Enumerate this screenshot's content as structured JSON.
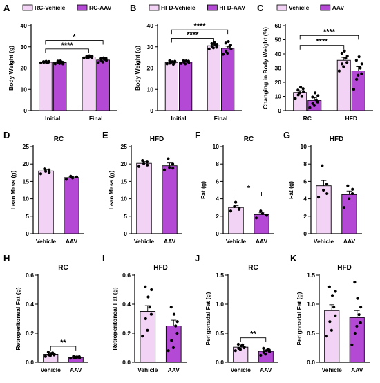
{
  "colors": {
    "vehicle": "#f2d2f5",
    "aav": "#b449d6"
  },
  "chart_data": [
    {
      "panel": "A",
      "type": "bar",
      "title": "",
      "categories": [
        "Initial",
        "Final"
      ],
      "ylabel": "Body Weight (g)",
      "ylim": [
        0,
        40
      ],
      "yticks": [
        0,
        10,
        20,
        30,
        40
      ],
      "legend": {
        "position": "top",
        "entries": [
          "RC-Vehicle",
          "RC-AAV"
        ]
      },
      "series": [
        {
          "name": "RC-Vehicle",
          "values": [
            22.8,
            25.2
          ],
          "errors": [
            0.3,
            0.3
          ]
        },
        {
          "name": "RC-AAV",
          "values": [
            22.6,
            23.8
          ],
          "errors": [
            0.4,
            0.5
          ]
        }
      ],
      "points": [
        [
          [
            22.5,
            23.0,
            22.7,
            23.2,
            22.9,
            22.6,
            23.1,
            22.8
          ],
          [
            22.0,
            23.3,
            22.5,
            23.4,
            22.2,
            22.9,
            22.7,
            22.0
          ]
        ],
        [
          [
            24.8,
            25.5,
            25.0,
            25.8,
            24.9,
            25.3,
            25.6,
            25.0
          ],
          [
            22.6,
            24.5,
            23.4,
            24.8,
            22.9,
            24.1,
            23.6,
            24.6
          ]
        ]
      ],
      "annotations": [
        {
          "text": "****",
          "from": "Initial.RC-Vehicle",
          "to": "Final.RC-Vehicle",
          "y": 29
        },
        {
          "text": "*",
          "from": "Initial.RC-Vehicle",
          "to": "Final.RC-AAV",
          "y": 33
        }
      ]
    },
    {
      "panel": "B",
      "type": "bar",
      "title": "",
      "categories": [
        "Initial",
        "Final"
      ],
      "ylabel": "Body Weight (g)",
      "ylim": [
        0,
        40
      ],
      "yticks": [
        0,
        10,
        20,
        30,
        40
      ],
      "legend": {
        "position": "top",
        "entries": [
          "HFD-Vehicle",
          "HFD-AAV"
        ]
      },
      "series": [
        {
          "name": "HFD-Vehicle",
          "values": [
            22.7,
            30.5
          ],
          "errors": [
            0.4,
            0.7
          ]
        },
        {
          "name": "HFD-AAV",
          "values": [
            22.9,
            29.3
          ],
          "errors": [
            0.4,
            1.0
          ]
        }
      ],
      "points": [
        [
          [
            22.0,
            23.5,
            22.3,
            23.0,
            22.8,
            21.8,
            23.2,
            22.6
          ],
          [
            22.2,
            23.6,
            22.8,
            23.4,
            22.0,
            23.1,
            22.6,
            23.3
          ]
        ],
        [
          [
            29.0,
            31.5,
            30.2,
            32.0,
            29.5,
            30.8,
            31.2,
            29.8
          ],
          [
            26.5,
            31.8,
            28.0,
            32.5,
            27.0,
            30.2,
            29.0,
            30.8
          ]
        ]
      ],
      "annotations": [
        {
          "text": "****",
          "from": "Initial.HFD-Vehicle",
          "to": "Final.HFD-Vehicle",
          "y": 34
        },
        {
          "text": "****",
          "from": "Initial.HFD-Vehicle",
          "to": "Final.HFD-AAV",
          "y": 38
        }
      ]
    },
    {
      "panel": "C",
      "type": "bar",
      "title": "",
      "categories": [
        "RC",
        "HFD"
      ],
      "ylabel": "Changing in Body Weight (%)",
      "ylim": [
        0,
        60
      ],
      "yticks": [
        0,
        10,
        20,
        30,
        40,
        50,
        60
      ],
      "legend": {
        "position": "top",
        "entries": [
          "Vehicle",
          "AAV"
        ]
      },
      "series": [
        {
          "name": "Vehicle",
          "values": [
            12.8,
            35.5
          ],
          "errors": [
            1.3,
            2.0
          ]
        },
        {
          "name": "AAV",
          "values": [
            7.2,
            28.0
          ],
          "errors": [
            1.9,
            3.0
          ]
        }
      ],
      "points": [
        [
          [
            8.5,
            14.5,
            11.0,
            16.5,
            12.5,
            10.0,
            13.5,
            15.5
          ],
          [
            2.0,
            9.5,
            5.0,
            12.5,
            3.5,
            7.5,
            10.5,
            6.0
          ]
        ],
        [
          [
            28.0,
            40.5,
            33.0,
            42.0,
            31.0,
            37.0,
            38.5,
            34.0
          ],
          [
            15.0,
            35.5,
            22.0,
            38.0,
            25.0,
            30.0,
            33.0,
            26.0
          ]
        ]
      ],
      "annotations": [
        {
          "text": "****",
          "from": "RC.Vehicle",
          "to": "HFD.Vehicle",
          "y": 46
        },
        {
          "text": "****",
          "from": "RC.Vehicle",
          "to": "HFD.AAV",
          "y": 53
        }
      ]
    },
    {
      "panel": "D",
      "type": "bar",
      "title": "RC",
      "categories": [
        "Vehicle",
        "AAV"
      ],
      "ylabel": "Lean Mass (g)",
      "ylim": [
        0,
        25
      ],
      "yticks": [
        0,
        5,
        10,
        15,
        20,
        25
      ],
      "series": [
        {
          "name": "",
          "values": [
            18.0,
            16.1
          ],
          "errors": [
            0.4,
            0.3
          ]
        }
      ],
      "points": [
        [
          17.2,
          18.6,
          17.9,
          18.3,
          17.6
        ],
        [
          15.6,
          16.5,
          16.0,
          16.3
        ]
      ],
      "annotations": []
    },
    {
      "panel": "E",
      "type": "bar",
      "title": "HFD",
      "categories": [
        "Vehicle",
        "AAV"
      ],
      "ylabel": "Lean Mass (g)",
      "ylim": [
        0,
        25
      ],
      "yticks": [
        0,
        5,
        10,
        15,
        20,
        25
      ],
      "series": [
        {
          "name": "",
          "values": [
            20.2,
            19.5
          ],
          "errors": [
            0.5,
            0.8
          ]
        }
      ],
      "points": [
        [
          19.3,
          21.0,
          20.1,
          20.6,
          19.7
        ],
        [
          18.3,
          21.5,
          19.0,
          20.0,
          18.8
        ]
      ],
      "annotations": []
    },
    {
      "panel": "F",
      "type": "bar",
      "title": "RC",
      "categories": [
        "Vehicle",
        "AAV"
      ],
      "ylabel": "Fat (g)",
      "ylim": [
        0,
        10
      ],
      "yticks": [
        0,
        2,
        4,
        6,
        8,
        10
      ],
      "series": [
        {
          "name": "",
          "values": [
            3.0,
            2.2
          ],
          "errors": [
            0.2,
            0.2
          ]
        }
      ],
      "points": [
        [
          2.6,
          3.1,
          3.6,
          2.8,
          2.9
        ],
        [
          1.8,
          2.6,
          2.3,
          2.1
        ]
      ],
      "annotations": [
        {
          "text": "*",
          "from": "Vehicle",
          "to": "AAV",
          "y": 4.8
        }
      ]
    },
    {
      "panel": "G",
      "type": "bar",
      "title": "HFD",
      "categories": [
        "Vehicle",
        "AAV"
      ],
      "ylabel": "Fat (g)",
      "ylim": [
        0,
        10
      ],
      "yticks": [
        0,
        2,
        4,
        6,
        8,
        10
      ],
      "series": [
        {
          "name": "",
          "values": [
            5.5,
            4.5
          ],
          "errors": [
            0.6,
            0.4
          ]
        }
      ],
      "points": [
        [
          4.2,
          7.8,
          5.0,
          5.7,
          4.6
        ],
        [
          3.0,
          5.5,
          4.0,
          4.6,
          5.1
        ]
      ],
      "annotations": []
    },
    {
      "panel": "H",
      "type": "bar",
      "title": "RC",
      "categories": [
        "Vehicle",
        "AAV"
      ],
      "ylabel": "Retroperitoneal Fat (g)",
      "ylim": [
        0,
        0.6
      ],
      "yticks": [
        0.0,
        0.2,
        0.4,
        0.6
      ],
      "series": [
        {
          "name": "",
          "values": [
            0.055,
            0.033
          ],
          "errors": [
            0.006,
            0.003
          ]
        }
      ],
      "points": [
        [
          0.04,
          0.07,
          0.05,
          0.06,
          0.045,
          0.065,
          0.055,
          0.05
        ],
        [
          0.028,
          0.04,
          0.033,
          0.036,
          0.03,
          0.035,
          0.03,
          0.038
        ]
      ],
      "annotations": [
        {
          "text": "**",
          "from": "Vehicle",
          "to": "AAV",
          "y": 0.11
        }
      ]
    },
    {
      "panel": "I",
      "type": "bar",
      "title": "HFD",
      "categories": [
        "Vehicle",
        "AAV"
      ],
      "ylabel": "Retroperitoneal Fat (g)",
      "ylim": [
        0,
        0.6
      ],
      "yticks": [
        0.0,
        0.2,
        0.4,
        0.6
      ],
      "series": [
        {
          "name": "",
          "values": [
            0.35,
            0.25
          ],
          "errors": [
            0.04,
            0.04
          ]
        }
      ],
      "points": [
        [
          0.18,
          0.52,
          0.3,
          0.45,
          0.22,
          0.38,
          0.5,
          0.33
        ],
        [
          0.08,
          0.38,
          0.15,
          0.33,
          0.1,
          0.25,
          0.28,
          0.2
        ]
      ],
      "annotations": []
    },
    {
      "panel": "J",
      "type": "bar",
      "title": "RC",
      "categories": [
        "Vehicle",
        "AAV"
      ],
      "ylabel": "Perigonadal Fat (g)",
      "ylim": [
        0,
        1.5
      ],
      "yticks": [
        0.0,
        0.5,
        1.0,
        1.5
      ],
      "series": [
        {
          "name": "",
          "values": [
            0.26,
            0.19
          ],
          "errors": [
            0.02,
            0.02
          ]
        }
      ],
      "points": [
        [
          0.2,
          0.31,
          0.24,
          0.28,
          0.22,
          0.3,
          0.26,
          0.25
        ],
        [
          0.12,
          0.24,
          0.17,
          0.2,
          0.14,
          0.22,
          0.18,
          0.21
        ]
      ],
      "annotations": [
        {
          "text": "**",
          "from": "Vehicle",
          "to": "AAV",
          "y": 0.42
        }
      ]
    },
    {
      "panel": "K",
      "type": "bar",
      "title": "HFD",
      "categories": [
        "Vehicle",
        "AAV"
      ],
      "ylabel": "Perigonadal Fat (g)",
      "ylim": [
        0,
        1.5
      ],
      "yticks": [
        0.0,
        0.5,
        1.0,
        1.5
      ],
      "series": [
        {
          "name": "",
          "values": [
            0.89,
            0.77
          ],
          "errors": [
            0.1,
            0.12
          ]
        }
      ],
      "points": [
        [
          0.45,
          1.3,
          0.7,
          1.15,
          0.55,
          0.95,
          1.22,
          0.8
        ],
        [
          0.3,
          1.38,
          0.5,
          1.1,
          0.62,
          0.82,
          0.95,
          0.68
        ]
      ],
      "annotations": []
    }
  ]
}
